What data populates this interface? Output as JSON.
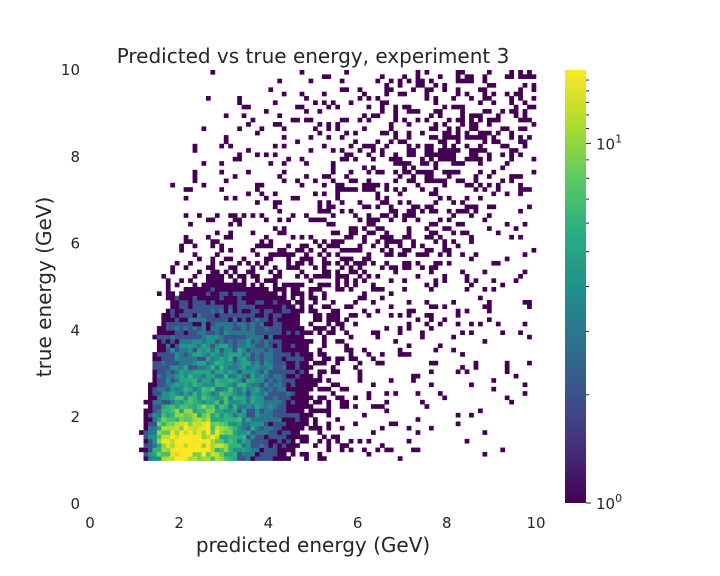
{
  "chart_data": {
    "type": "heatmap",
    "title": "Predicted vs true energy, experiment 3",
    "xlabel": "predicted energy (GeV)",
    "ylabel": "true energy (GeV)",
    "xlim": [
      0,
      10
    ],
    "ylim": [
      0,
      10
    ],
    "x_ticks": [
      "0",
      "2",
      "4",
      "6",
      "8",
      "10"
    ],
    "y_ticks": [
      "0",
      "2",
      "4",
      "6",
      "8",
      "10"
    ],
    "grid": false,
    "bins": 100,
    "colormap": "viridis",
    "color_scale": "log",
    "colorbar": {
      "min": 1,
      "max": 16,
      "tick_labels": [
        {
          "value": 1,
          "base": "10",
          "exp": "0"
        },
        {
          "value": 10,
          "base": "10",
          "exp": "1"
        }
      ]
    },
    "data_extent": {
      "x_min": 1.0,
      "x_max": 10.0,
      "y_min": 1.0,
      "y_max": 10.0
    },
    "peak": {
      "x": 2.1,
      "y": 1.3,
      "count": 16
    },
    "density_model": {
      "core": {
        "x": 2.2,
        "y": 1.4,
        "sx": 0.55,
        "sy": 0.45,
        "amp": 16
      },
      "mid": {
        "x": 2.8,
        "y": 2.6,
        "sx": 1.1,
        "sy": 1.3,
        "amp": 4.2
      },
      "tail": {
        "amp": 0.65
      }
    }
  }
}
